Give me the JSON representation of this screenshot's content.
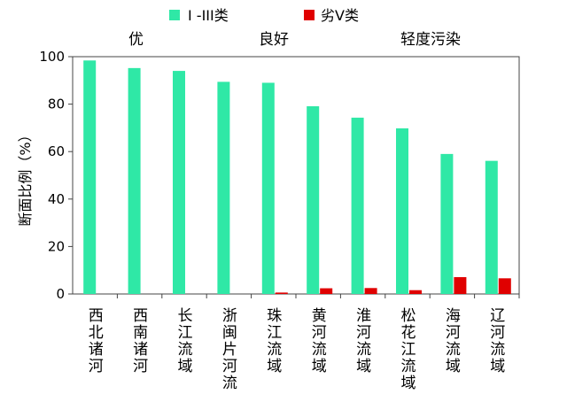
{
  "chart_data": {
    "type": "bar",
    "categories": [
      "西北诸河",
      "西南诸河",
      "长江流域",
      "浙闽片河流",
      "珠江流域",
      "黄河流域",
      "淮河流域",
      "松花江流域",
      "海河流域",
      "辽河流域"
    ],
    "series": [
      {
        "name": "I -III类",
        "color": "#2fe8a6",
        "values": [
          98.4,
          95.2,
          94.0,
          89.4,
          89.0,
          79.1,
          74.3,
          69.8,
          59.0,
          56.1
        ]
      },
      {
        "name": "劣V类",
        "color": "#e00000",
        "values": [
          0,
          0,
          0,
          0,
          0.6,
          2.4,
          2.5,
          1.6,
          7.1,
          6.6
        ]
      }
    ],
    "ylabel": "断面比例（%）",
    "xlabel": "",
    "ylim": [
      0,
      100
    ],
    "yticks": [
      0,
      20,
      40,
      60,
      80,
      100
    ],
    "grid": false,
    "legend": "top",
    "annotations": [
      "优",
      "良好",
      "轻度污染"
    ]
  }
}
